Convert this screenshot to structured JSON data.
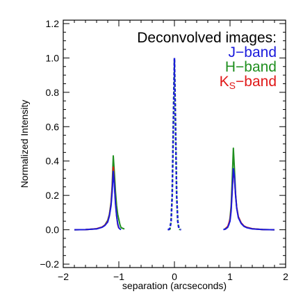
{
  "chart_data": {
    "type": "line",
    "title": "",
    "xlabel": "separation (arcseconds)",
    "ylabel": "Normalized Intensity",
    "xlim": [
      -2,
      2
    ],
    "ylim": [
      -0.22,
      1.22
    ],
    "x_ticks": [
      -2,
      -1,
      0,
      1,
      2
    ],
    "y_ticks": [
      -0.2,
      0.0,
      0.2,
      0.4,
      0.6,
      0.8,
      1.0,
      1.2
    ],
    "x_tick_labels": [
      "−2",
      "−1",
      "0",
      "1",
      "2"
    ],
    "y_tick_labels": [
      "−0.2",
      "0.0",
      "0.2",
      "0.4",
      "0.6",
      "0.8",
      "1.0",
      "1.2"
    ],
    "grid": false,
    "legend": {
      "title": "Deconvolved images:",
      "placement": "top-right",
      "entries": [
        {
          "label": "J−band",
          "color": "#1a1adc"
        },
        {
          "label": "H−band",
          "color": "#1f8f1f"
        },
        {
          "label": "K",
          "sub": "S",
          "suffix": "−band",
          "color": "#e01818"
        }
      ]
    },
    "series": [
      {
        "name": "H−band",
        "color": "#1f8f1f",
        "style": "solid",
        "x": [
          -1.8,
          -1.6,
          -1.4,
          -1.3,
          -1.25,
          -1.2,
          -1.17,
          -1.14,
          -1.12,
          -1.1,
          -1.08,
          -1.06,
          -1.04,
          -1.02,
          -1.0,
          -0.98,
          -0.96,
          -0.9
        ],
        "values": [
          0.0,
          0.001,
          0.006,
          0.016,
          0.028,
          0.055,
          0.09,
          0.16,
          0.26,
          0.43,
          0.33,
          0.22,
          0.14,
          0.09,
          0.06,
          0.03,
          0.012,
          0.004
        ]
      },
      {
        "name": "H−band",
        "color": "#1f8f1f",
        "style": "solid",
        "x": [
          0.9,
          0.95,
          0.98,
          1.0,
          1.02,
          1.04,
          1.06,
          1.08,
          1.1,
          1.12,
          1.15,
          1.2,
          1.25,
          1.3,
          1.4,
          1.6,
          1.8
        ],
        "values": [
          0.004,
          0.012,
          0.03,
          0.07,
          0.14,
          0.3,
          0.475,
          0.35,
          0.21,
          0.13,
          0.075,
          0.04,
          0.022,
          0.014,
          0.006,
          0.001,
          0.0
        ]
      },
      {
        "name": "H−band",
        "color": "#1f8f1f",
        "style": "dashed",
        "x": [
          -0.1,
          -0.08,
          -0.06,
          -0.04,
          -0.02,
          0.0,
          0.02,
          0.04,
          0.06,
          0.08,
          0.1
        ],
        "values": [
          0.0,
          0.005,
          0.05,
          0.2,
          0.6,
          0.99,
          0.6,
          0.2,
          0.05,
          0.005,
          0.0
        ]
      },
      {
        "name": "K",
        "color": "#e01818",
        "style": "solid",
        "x": [
          -1.8,
          -1.6,
          -1.4,
          -1.3,
          -1.25,
          -1.2,
          -1.17,
          -1.14,
          -1.12,
          -1.1,
          -1.08,
          -1.06,
          -1.04,
          -1.02,
          -1.0
        ],
        "values": [
          0.0,
          0.001,
          0.006,
          0.016,
          0.027,
          0.05,
          0.085,
          0.15,
          0.24,
          0.365,
          0.27,
          0.16,
          0.08,
          0.03,
          0.008
        ]
      },
      {
        "name": "K",
        "color": "#e01818",
        "style": "solid",
        "x": [
          0.92,
          0.96,
          1.0,
          1.02,
          1.04,
          1.06,
          1.08,
          1.1,
          1.12,
          1.15,
          1.2,
          1.25,
          1.3,
          1.4,
          1.6,
          1.8
        ],
        "values": [
          0.008,
          0.02,
          0.06,
          0.12,
          0.24,
          0.35,
          0.3,
          0.2,
          0.13,
          0.075,
          0.04,
          0.022,
          0.014,
          0.006,
          0.001,
          0.0
        ]
      },
      {
        "name": "J−band",
        "color": "#1a1adc",
        "style": "solid",
        "x": [
          -1.8,
          -1.6,
          -1.4,
          -1.3,
          -1.25,
          -1.2,
          -1.17,
          -1.14,
          -1.12,
          -1.1,
          -1.08,
          -1.06,
          -1.04,
          -1.02,
          -1.0,
          -0.98,
          -0.96
        ],
        "values": [
          0.0,
          0.001,
          0.005,
          0.014,
          0.025,
          0.045,
          0.08,
          0.14,
          0.22,
          0.34,
          0.26,
          0.15,
          0.08,
          0.035,
          0.012,
          0.004,
          0.001
        ]
      },
      {
        "name": "J−band",
        "color": "#1a1adc",
        "style": "solid",
        "x": [
          0.88,
          0.92,
          0.96,
          1.0,
          1.02,
          1.04,
          1.06,
          1.08,
          1.1,
          1.12,
          1.15,
          1.2,
          1.25,
          1.3,
          1.4,
          1.6,
          1.8
        ],
        "values": [
          0.001,
          0.004,
          0.015,
          0.05,
          0.11,
          0.23,
          0.355,
          0.31,
          0.2,
          0.125,
          0.07,
          0.037,
          0.02,
          0.012,
          0.005,
          0.001,
          0.0
        ]
      },
      {
        "name": "J−band",
        "color": "#1a1adc",
        "style": "dashed",
        "x": [
          -0.12,
          -0.1,
          -0.08,
          -0.06,
          -0.04,
          -0.02,
          0.0,
          0.02,
          0.04,
          0.06,
          0.08,
          0.1,
          0.12
        ],
        "values": [
          0.0,
          0.002,
          0.01,
          0.05,
          0.2,
          0.6,
          1.0,
          0.6,
          0.2,
          0.05,
          0.01,
          0.002,
          0.0
        ]
      }
    ]
  }
}
